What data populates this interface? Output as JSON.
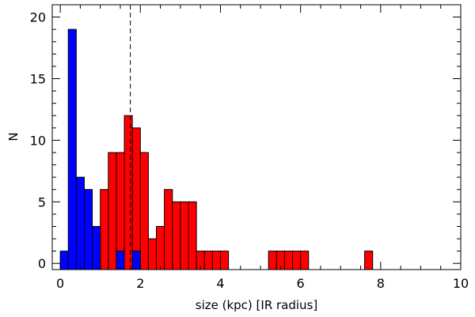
{
  "chart_data": {
    "type": "bar",
    "title": "",
    "xlabel": "size (kpc) [IR radius]",
    "ylabel": "N",
    "xlim": [
      -0.2,
      10
    ],
    "ylim": [
      -0.5,
      21
    ],
    "bin_width": 0.2,
    "x_ticks": [
      0,
      2,
      4,
      6,
      8,
      10
    ],
    "y_ticks": [
      0,
      5,
      10,
      15,
      20
    ],
    "grid": false,
    "legend": "none",
    "reference_line": {
      "x": 1.75,
      "style": "dashed",
      "color": "#000000"
    },
    "series": [
      {
        "color": "#ff0000",
        "bins": [
          {
            "x0": 0.0,
            "count": 0
          },
          {
            "x0": 0.2,
            "count": 1
          },
          {
            "x0": 0.4,
            "count": 2
          },
          {
            "x0": 0.6,
            "count": 3
          },
          {
            "x0": 0.8,
            "count": 3
          },
          {
            "x0": 1.0,
            "count": 6
          },
          {
            "x0": 1.2,
            "count": 9
          },
          {
            "x0": 1.4,
            "count": 9
          },
          {
            "x0": 1.6,
            "count": 12
          },
          {
            "x0": 1.8,
            "count": 11
          },
          {
            "x0": 2.0,
            "count": 9
          },
          {
            "x0": 2.2,
            "count": 2
          },
          {
            "x0": 2.4,
            "count": 3
          },
          {
            "x0": 2.6,
            "count": 6
          },
          {
            "x0": 2.8,
            "count": 5
          },
          {
            "x0": 3.0,
            "count": 5
          },
          {
            "x0": 3.2,
            "count": 5
          },
          {
            "x0": 3.4,
            "count": 1
          },
          {
            "x0": 3.6,
            "count": 1
          },
          {
            "x0": 3.8,
            "count": 1
          },
          {
            "x0": 4.0,
            "count": 1
          },
          {
            "x0": 5.2,
            "count": 1
          },
          {
            "x0": 5.4,
            "count": 1
          },
          {
            "x0": 5.6,
            "count": 1
          },
          {
            "x0": 5.8,
            "count": 1
          },
          {
            "x0": 6.0,
            "count": 1
          },
          {
            "x0": 7.6,
            "count": 1
          }
        ]
      },
      {
        "color": "#0000ff",
        "bins": [
          {
            "x0": 0.0,
            "count": 1
          },
          {
            "x0": 0.2,
            "count": 19
          },
          {
            "x0": 0.4,
            "count": 7
          },
          {
            "x0": 0.6,
            "count": 6
          },
          {
            "x0": 0.8,
            "count": 3
          },
          {
            "x0": 1.4,
            "count": 1
          },
          {
            "x0": 1.8,
            "count": 1
          }
        ]
      }
    ]
  }
}
